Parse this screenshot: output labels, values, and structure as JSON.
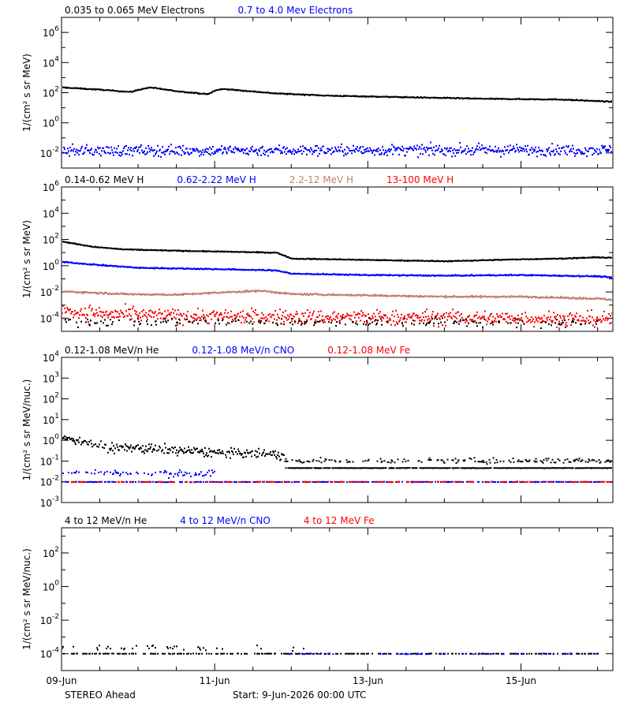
{
  "footer": {
    "spacecraft": "STEREO Ahead",
    "start": "Start:  9-Jun-2026 00:00 UTC"
  },
  "x_axis": {
    "range_days": [
      0,
      7.2
    ],
    "ticks": [
      {
        "day": 0,
        "label": "09-Jun"
      },
      {
        "day": 2,
        "label": "11-Jun"
      },
      {
        "day": 4,
        "label": "13-Jun"
      },
      {
        "day": 6,
        "label": "15-Jun"
      }
    ]
  },
  "chart_data": [
    {
      "type": "scatter",
      "id": "electrons",
      "ylabel": "1/(cm² s sr MeV)",
      "yscale": "log",
      "ylim_log10": [
        -3,
        7
      ],
      "yticks": [
        {
          "base": "10",
          "exp": "-2"
        },
        {
          "base": "10",
          "exp": "0"
        },
        {
          "base": "10",
          "exp": "2"
        },
        {
          "base": "10",
          "exp": "4"
        },
        {
          "base": "10",
          "exp": "6"
        }
      ],
      "yticks_log10": [
        -2,
        0,
        2,
        4,
        6
      ],
      "legend": [
        {
          "name": "0.035 to 0.065 MeV Electrons",
          "color": "#000000"
        },
        {
          "name": "0.7 to 4.0 Mev Electrons",
          "color": "#0000ff"
        }
      ],
      "series": [
        {
          "color": "#000000",
          "spread": 0.03,
          "density": 1,
          "x": [
            0,
            0.5,
            0.9,
            1.0,
            1.15,
            1.5,
            1.9,
            2.0,
            2.1,
            2.8,
            3.5,
            4.5,
            5.5,
            6.5,
            7.2
          ],
          "log10y": [
            2.4,
            2.25,
            2.1,
            2.25,
            2.4,
            2.15,
            1.95,
            2.2,
            2.3,
            2.0,
            1.85,
            1.75,
            1.65,
            1.6,
            1.45
          ]
        },
        {
          "color": "#0000ff",
          "spread": 0.35,
          "density": 1,
          "x": [
            0,
            7.2
          ],
          "log10y": [
            -1.8,
            -1.75
          ]
        }
      ]
    },
    {
      "type": "scatter",
      "id": "protons",
      "ylabel": "1/(cm² s sr MeV)",
      "yscale": "log",
      "ylim_log10": [
        -5,
        6
      ],
      "yticks": [
        {
          "base": "10",
          "exp": "-4"
        },
        {
          "base": "10",
          "exp": "-2"
        },
        {
          "base": "10",
          "exp": "0"
        },
        {
          "base": "10",
          "exp": "2"
        },
        {
          "base": "10",
          "exp": "4"
        },
        {
          "base": "10",
          "exp": "6"
        }
      ],
      "yticks_log10": [
        -4,
        -2,
        0,
        2,
        4,
        6
      ],
      "legend": [
        {
          "name": "0.14-0.62 MeV H",
          "color": "#000000"
        },
        {
          "name": "0.62-2.22 MeV H",
          "color": "#0000ff"
        },
        {
          "name": "2.2-12 MeV H",
          "color": "#c08070"
        },
        {
          "name": "13-100 MeV H",
          "color": "#ff0000"
        }
      ],
      "series": [
        {
          "color": "#000000",
          "spread": 0.03,
          "density": 1,
          "x": [
            0,
            0.4,
            0.8,
            1.5,
            2.8,
            3.0,
            4.0,
            5.0,
            6.0,
            6.5,
            7.0,
            7.2
          ],
          "log10y": [
            1.9,
            1.5,
            1.3,
            1.2,
            1.05,
            0.6,
            0.5,
            0.4,
            0.55,
            0.6,
            0.7,
            0.65
          ]
        },
        {
          "color": "#0000ff",
          "spread": 0.04,
          "density": 1,
          "x": [
            0,
            0.5,
            1.0,
            2.0,
            2.8,
            3.0,
            4.0,
            5.0,
            6.0,
            7.0,
            7.2
          ],
          "log10y": [
            0.35,
            0.1,
            -0.1,
            -0.2,
            -0.3,
            -0.55,
            -0.65,
            -0.7,
            -0.65,
            -0.75,
            -0.85
          ]
        },
        {
          "color": "#c08070",
          "spread": 0.06,
          "density": 1,
          "x": [
            0,
            0.8,
            1.5,
            2.2,
            2.6,
            3.0,
            4.0,
            5.0,
            6.0,
            7.0,
            7.2
          ],
          "log10y": [
            -1.9,
            -2.1,
            -2.15,
            -1.95,
            -1.85,
            -2.1,
            -2.2,
            -2.3,
            -2.3,
            -2.45,
            -2.55
          ]
        },
        {
          "color": "#ff0000",
          "spread": 0.55,
          "density": 1,
          "x": [
            0,
            0.5,
            1.0,
            2.0,
            3.0,
            4.0,
            5.0,
            6.0,
            7.2
          ],
          "log10y": [
            -3.4,
            -3.6,
            -3.75,
            -3.8,
            -3.85,
            -3.9,
            -3.9,
            -3.95,
            -4.0
          ]
        },
        {
          "color": "#000000",
          "spread": 0.35,
          "density": 0.25,
          "x": [
            0,
            7.2
          ],
          "log10y": [
            -4.2,
            -4.3
          ]
        }
      ]
    },
    {
      "type": "scatter",
      "id": "low-energy-ions",
      "ylabel": "1/(cm² s sr MeV/nuc.)",
      "yscale": "log",
      "ylim_log10": [
        -3,
        4
      ],
      "yticks": [
        {
          "base": "10",
          "exp": "-3"
        },
        {
          "base": "10",
          "exp": "-2"
        },
        {
          "base": "10",
          "exp": "-1"
        },
        {
          "base": "10",
          "exp": "0"
        },
        {
          "base": "10",
          "exp": "1"
        },
        {
          "base": "10",
          "exp": "2"
        },
        {
          "base": "10",
          "exp": "3"
        },
        {
          "base": "10",
          "exp": "4"
        }
      ],
      "yticks_log10": [
        -3,
        -2,
        -1,
        0,
        1,
        2,
        3,
        4
      ],
      "legend": [
        {
          "name": "0.12-1.08 MeV/n He",
          "color": "#000000"
        },
        {
          "name": "0.12-1.08 MeV/n CNO",
          "color": "#0000ff"
        },
        {
          "name": "0.12-1.08 MeV Fe",
          "color": "#ff0000"
        }
      ],
      "series": [
        {
          "color": "#000000",
          "spread": 0.22,
          "density": 0.9,
          "x": [
            0,
            0.3,
            0.6,
            1.0,
            1.5,
            2.0,
            2.5,
            2.9
          ],
          "log10y": [
            0.15,
            0.0,
            -0.3,
            -0.35,
            -0.45,
            -0.55,
            -0.6,
            -0.65
          ]
        },
        {
          "color": "#000000",
          "spread": 0.01,
          "density": 0.8,
          "x": [
            2.9,
            7.2
          ],
          "log10y": [
            -1.3,
            -1.3
          ]
        },
        {
          "color": "#000000",
          "spread": 0.12,
          "density": 0.35,
          "x": [
            2.9,
            7.2
          ],
          "log10y": [
            -0.95,
            -0.95
          ]
        },
        {
          "color": "#0000ff",
          "spread": 0.15,
          "density": 0.3,
          "x": [
            0,
            2.0
          ],
          "log10y": [
            -1.5,
            -1.6
          ]
        },
        {
          "color": "#0000ff",
          "spread": 0.01,
          "density": 0.5,
          "x": [
            0,
            7.2
          ],
          "log10y": [
            -1.97,
            -1.97
          ]
        },
        {
          "color": "#ff0000",
          "spread": 0.01,
          "density": 0.25,
          "x": [
            0,
            7.2
          ],
          "log10y": [
            -1.97,
            -1.97
          ]
        }
      ]
    },
    {
      "type": "scatter",
      "id": "high-energy-ions",
      "ylabel": "1/(cm² s sr MeV/nuc.)",
      "yscale": "log",
      "ylim_log10": [
        -5,
        3.5
      ],
      "yticks": [
        {
          "base": "10",
          "exp": "-4"
        },
        {
          "base": "10",
          "exp": "-2"
        },
        {
          "base": "10",
          "exp": "0"
        },
        {
          "base": "10",
          "exp": "2"
        }
      ],
      "yticks_log10": [
        -4,
        -2,
        0,
        2
      ],
      "legend": [
        {
          "name": "4 to 12 MeV/n He",
          "color": "#000000"
        },
        {
          "name": "4 to 12 MeV/n CNO",
          "color": "#0000ff"
        },
        {
          "name": "4 to 12 MeV Fe",
          "color": "#ff0000"
        }
      ],
      "series": [
        {
          "color": "#000000",
          "spread": 0.01,
          "density": 0.35,
          "x": [
            0,
            7.0
          ],
          "log10y": [
            -3.95,
            -3.95
          ]
        },
        {
          "color": "#000000",
          "spread": 0.15,
          "density": 0.12,
          "x": [
            0,
            3.2
          ],
          "log10y": [
            -3.6,
            -3.6
          ]
        },
        {
          "color": "#0000ff",
          "spread": 0.01,
          "density": 0.15,
          "x": [
            2.9,
            7.0
          ],
          "log10y": [
            -3.97,
            -3.97
          ]
        },
        {
          "color": "#0000ff",
          "spread": 0.1,
          "density": 0.04,
          "x": [
            0,
            7.0
          ],
          "log10y": [
            -5.1,
            -5.1
          ]
        }
      ]
    }
  ]
}
